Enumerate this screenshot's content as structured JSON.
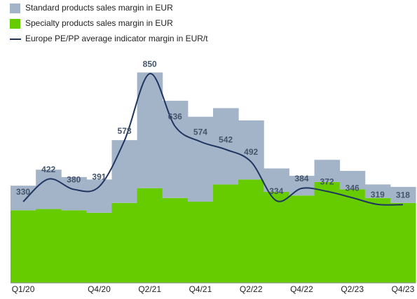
{
  "chart_data": {
    "type": "bar",
    "stacked": true,
    "categories": [
      "Q1/20",
      null,
      null,
      "Q4/20",
      null,
      "Q2/21",
      null,
      "Q4/21",
      null,
      "Q2/22",
      null,
      "Q4/22",
      null,
      "Q2/23",
      null,
      "Q4/23"
    ],
    "ylim": [
      0,
      1000
    ],
    "series": [
      {
        "name": "Standard products sales margin in EUR",
        "color": "#a3b3c8",
        "values": [
          100,
          160,
          135,
          135,
          255,
          470,
          395,
          345,
          310,
          240,
          95,
          80,
          90,
          75,
          55,
          65
        ]
      },
      {
        "name": "Specialty products sales margin in EUR",
        "color": "#66cc00",
        "values": [
          295,
          300,
          295,
          285,
          325,
          385,
          345,
          330,
          400,
          420,
          370,
          355,
          410,
          380,
          345,
          325
        ]
      },
      {
        "name": "Europe PE/PP average indicator margin in EUR/t",
        "type": "line",
        "color": "#1f3560",
        "values": [
          330,
          422,
          380,
          391,
          578,
          850,
          636,
          574,
          542,
          492,
          334,
          384,
          372,
          346,
          319,
          318
        ]
      }
    ]
  }
}
